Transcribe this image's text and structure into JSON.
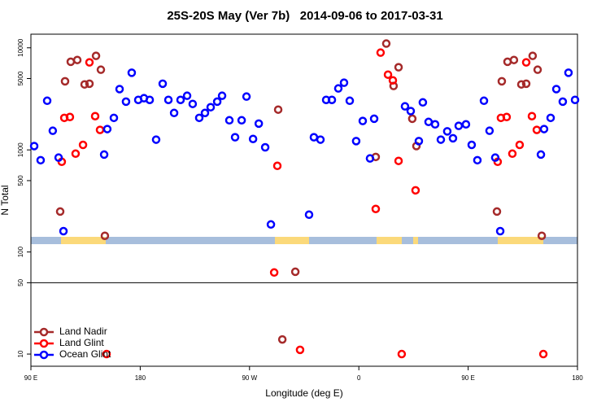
{
  "chart_data": {
    "type": "scatter",
    "title": "25S-20S May (Ver 7b)   2014-09-06 to 2017-03-31",
    "xlabel": "Longitude (deg E)",
    "ylabel": "N Total",
    "xlim": [
      90,
      540
    ],
    "ylim": [
      7.6,
      13600
    ],
    "log_y": true,
    "hline": 50,
    "legend": "lower left",
    "xticks": [
      {
        "value": 90,
        "label": "90 E"
      },
      180,
      {
        "value": 270,
        "label": "90 W"
      },
      {
        "value": 360,
        "label": "0"
      },
      {
        "value": 450,
        "label": "90 E"
      },
      {
        "value": 540,
        "label": "180"
      }
    ],
    "yticks": [
      10,
      50,
      100,
      500,
      1000,
      5000,
      10000
    ],
    "series": [
      {
        "name": "Land Nadir",
        "color": "#a52a2a",
        "x": [
          114.1,
          118.1,
          122.8,
          128.2,
          134.2,
          138.2,
          143.6,
          147.6,
          150.9,
          293.6,
          297,
          307.7,
          373.9,
          382.6,
          388.6,
          392.7,
          404,
          407.4,
          473.7,
          477.7,
          482.4,
          487.7,
          493.8,
          497.8,
          503.1,
          507.2,
          510.6
        ],
        "values": [
          249,
          4700,
          7300,
          7600,
          4380,
          4450,
          8340,
          6100,
          144,
          2480,
          13.9,
          64,
          853,
          11000,
          4230,
          6450,
          2020,
          1090,
          249,
          4700,
          7300,
          7600,
          4380,
          4450,
          8340,
          6100,
          144
        ]
      },
      {
        "name": "Land Glint",
        "color": "#ff0000",
        "x": [
          115.4,
          117.5,
          122.1,
          126.8,
          132.9,
          138.2,
          142.9,
          146.9,
          152.3,
          290.3,
          292.9,
          311.6,
          373.9,
          377.9,
          384,
          388,
          392.7,
          395.3,
          406.7,
          474.3,
          477,
          481.7,
          486.4,
          492.4,
          497.8,
          502.5,
          506.5,
          511.9
        ],
        "values": [
          765,
          2060,
          2100,
          919,
          1120,
          7200,
          2140,
          1570,
          10,
          63,
          698,
          11,
          264,
          8970,
          5460,
          4800,
          780,
          10,
          402,
          765,
          2060,
          2100,
          919,
          1120,
          7200,
          2140,
          1570,
          10
        ]
      },
      {
        "name": "Ocean Glint",
        "color": "#0000ff",
        "x": [
          92.7,
          98,
          103.4,
          108,
          112.8,
          116.8,
          150.3,
          152.9,
          158.3,
          163,
          168.3,
          173,
          178.4,
          183.1,
          187.8,
          193.1,
          198.5,
          203.2,
          207.9,
          213.2,
          218.6,
          223.2,
          228.6,
          233.3,
          238,
          243.4,
          247.4,
          253.4,
          258.1,
          263.5,
          267.5,
          272.9,
          277.6,
          282.9,
          287.6,
          319,
          323,
          328.4,
          333.1,
          337.8,
          343.1,
          347.8,
          352.5,
          357.8,
          363.2,
          369.2,
          372.6,
          398,
          402.7,
          409.4,
          412.7,
          417.4,
          422.8,
          427.5,
          432.8,
          437.5,
          442.2,
          448.2,
          452.9,
          457.6,
          463,
          467.6,
          472.3,
          476.4,
          509.9,
          512.5,
          517.9,
          522.6,
          527.9,
          532.6,
          538
        ],
        "values": [
          1090,
          793,
          3030,
          1540,
          840,
          160,
          900,
          1600,
          2060,
          3940,
          2970,
          5700,
          3090,
          3210,
          3090,
          1260,
          4450,
          3090,
          2300,
          3090,
          3390,
          2820,
          2060,
          2300,
          2620,
          2970,
          3390,
          1950,
          1330,
          1950,
          3330,
          1280,
          1810,
          1060,
          186,
          232,
          1330,
          1260,
          3090,
          3090,
          4000,
          4550,
          3030,
          1220,
          1920,
          825,
          2020,
          2670,
          2400,
          1220,
          2920,
          1880,
          1780,
          1260,
          1520,
          1300,
          1720,
          1780,
          1120,
          793,
          3030,
          1540,
          840,
          160,
          900,
          1600,
          2060,
          3940,
          2970,
          5700,
          3090
        ]
      }
    ]
  }
}
